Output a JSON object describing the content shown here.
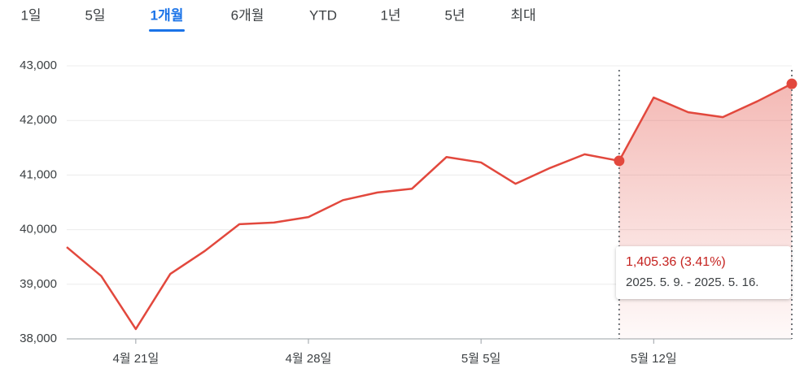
{
  "tabs": [
    "1일",
    "5일",
    "1개월",
    "6개월",
    "YTD",
    "1년",
    "5년",
    "최대"
  ],
  "chart_data": {
    "type": "line",
    "categories": [
      null,
      null,
      "4월 21일",
      null,
      null,
      null,
      null,
      "4월 28일",
      null,
      null,
      null,
      null,
      "5월 5일",
      null,
      null,
      null,
      null,
      "5월 12일",
      null,
      null,
      null,
      null
    ],
    "series": [
      {
        "color": "#e2483d",
        "values": [
          39680,
          39150,
          38180,
          39190,
          39610,
          40100,
          40130,
          40230,
          40540,
          40680,
          40750,
          41330,
          41230,
          40840,
          41130,
          41380,
          41260,
          42420,
          42150,
          42060,
          42350,
          42670
        ]
      }
    ],
    "ylim": [
      38000,
      43000
    ],
    "yticks": [
      {
        "value": 38000,
        "label": "38,000"
      },
      {
        "value": 39000,
        "label": "39,000"
      },
      {
        "value": 40000,
        "label": "40,000"
      },
      {
        "value": 41000,
        "label": "41,000"
      },
      {
        "value": 42000,
        "label": "42,000"
      },
      {
        "value": 43000,
        "label": "43,000"
      }
    ],
    "grid": true,
    "tooltip": {
      "change": "1,405.36 (3.41%)",
      "range": "2025. 5. 9. - 2025. 5. 16."
    }
  }
}
